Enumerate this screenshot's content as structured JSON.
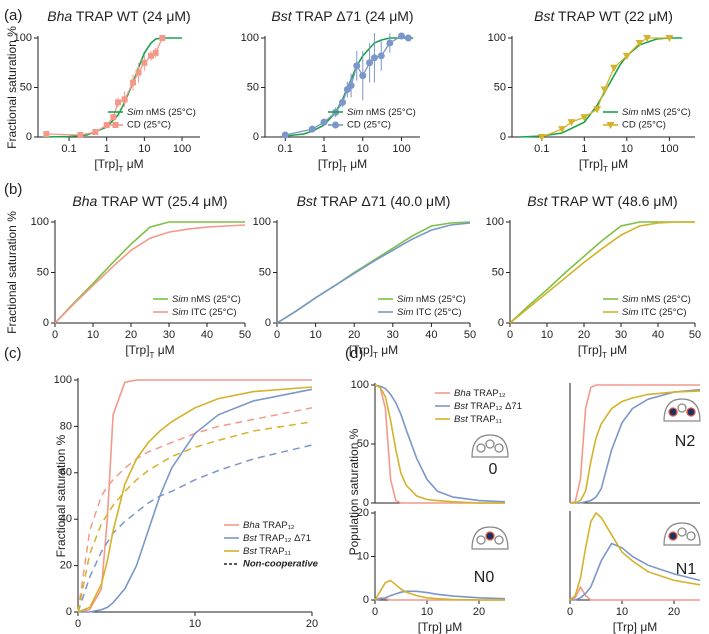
{
  "chart_data": [
    {
      "type": "line",
      "panel": "(a)",
      "title": "Bha TRAP WT (24 μM)",
      "title_style": "italic-first",
      "title_color": "#f4998a",
      "ylabel": "Fractional saturation %",
      "xlabel": [
        "[Trp]",
        "T",
        " μM"
      ],
      "xscale": "log",
      "xlim": [
        0.015,
        300
      ],
      "xticks": [
        0.1,
        1,
        10,
        100
      ],
      "ylim": [
        0,
        100
      ],
      "yticks": [
        0,
        50,
        100
      ],
      "legend": "lower right",
      "series": [
        {
          "name": "Sim nMS (25°C)",
          "name_style": "italic-first",
          "color": "#1aa34a",
          "x": [
            0.02,
            0.1,
            0.3,
            1,
            2,
            3,
            5,
            7,
            10,
            15,
            20,
            30,
            50,
            100
          ],
          "values": [
            0,
            0.5,
            2,
            10,
            22,
            35,
            55,
            70,
            85,
            95,
            99,
            100,
            100,
            100
          ]
        },
        {
          "name": "CD (25°C)",
          "name_style": "plain",
          "color": "#f4998a",
          "marker": "square",
          "x": [
            0.025,
            0.2,
            0.5,
            1,
            1.5,
            2,
            3,
            5,
            7,
            10,
            15,
            20,
            30
          ],
          "values": [
            3,
            2,
            5,
            12,
            20,
            35,
            38,
            55,
            65,
            75,
            82,
            85,
            100
          ],
          "errors": [
            1,
            1,
            2,
            2,
            3,
            5,
            8,
            8,
            10,
            8,
            5,
            5,
            2
          ]
        }
      ]
    },
    {
      "type": "line",
      "title": "Bst TRAP Δ71 (24 μM)",
      "title_style": "italic-first",
      "title_color": "#7b96c9",
      "xlabel": [
        "[Trp]",
        "T",
        " μM"
      ],
      "xscale": "log",
      "xlim": [
        0.03,
        300
      ],
      "xticks": [
        0.1,
        1,
        10,
        100
      ],
      "ylim": [
        0,
        100
      ],
      "yticks": [
        0,
        50,
        100
      ],
      "legend": "lower right",
      "series": [
        {
          "name": "Sim nMS (25°C)",
          "name_style": "italic-first",
          "color": "#1aa34a",
          "x": [
            0.1,
            0.3,
            0.5,
            1,
            2,
            3,
            5,
            7,
            10,
            20,
            30,
            50,
            100,
            200
          ],
          "values": [
            1,
            3,
            6,
            12,
            25,
            38,
            58,
            72,
            82,
            95,
            98,
            100,
            100,
            100
          ]
        },
        {
          "name": "CD (25°C)",
          "name_style": "plain",
          "color": "#7b96c9",
          "marker": "circle",
          "x": [
            0.1,
            0.5,
            1,
            2,
            3,
            4,
            5,
            7,
            10,
            15,
            20,
            30,
            50,
            100,
            150
          ],
          "values": [
            2,
            8,
            15,
            25,
            35,
            48,
            52,
            72,
            62,
            75,
            80,
            82,
            95,
            102,
            100
          ],
          "errors": [
            1,
            3,
            3,
            5,
            5,
            8,
            12,
            15,
            25,
            20,
            25,
            15,
            10,
            3,
            2
          ]
        }
      ]
    },
    {
      "type": "line",
      "title": "Bst TRAP WT (22 μM)",
      "title_style": "italic-first",
      "title_color": "#d4b22a",
      "xlabel": [
        "[Trp]",
        "T",
        " μM"
      ],
      "xscale": "log",
      "xlim": [
        0.02,
        400
      ],
      "xticks": [
        0.1,
        1,
        10,
        100
      ],
      "ylim": [
        0,
        100
      ],
      "yticks": [
        0,
        50,
        100
      ],
      "legend": "lower right",
      "series": [
        {
          "name": "Sim nMS (25°C)",
          "name_style": "italic-first",
          "color": "#1aa34a",
          "x": [
            0.03,
            0.1,
            0.3,
            1,
            2,
            3,
            5,
            7,
            10,
            20,
            50,
            100,
            200
          ],
          "values": [
            0,
            1,
            4,
            15,
            32,
            45,
            62,
            73,
            82,
            93,
            99,
            100,
            100
          ]
        },
        {
          "name": "CD (25°C)",
          "name_style": "plain",
          "color": "#d4b22a",
          "marker": "triangle",
          "x": [
            0.1,
            0.3,
            0.5,
            1,
            2,
            3,
            5,
            10,
            20,
            30,
            100
          ],
          "values": [
            0,
            8,
            15,
            20,
            28,
            48,
            70,
            82,
            95,
            100,
            100
          ]
        }
      ]
    },
    {
      "type": "line",
      "panel": "(b)",
      "title": "Bha TRAP WT (25.4 μM)",
      "title_style": "italic-first",
      "title_color": "#f4998a",
      "ylabel": "Fractional saturation %",
      "xlabel": [
        "[Trp]",
        "T",
        " μM"
      ],
      "xlim": [
        0,
        50
      ],
      "xticks": [
        0,
        10,
        20,
        30,
        40,
        50
      ],
      "ylim": [
        0,
        100
      ],
      "yticks": [
        0,
        50,
        100
      ],
      "legend": "lower right",
      "x": [
        0,
        5,
        10,
        15,
        20,
        25,
        30,
        35,
        40,
        45,
        50
      ],
      "series": [
        {
          "name": "Sim nMS (25°C)",
          "name_style": "italic-first",
          "color": "#7ac143",
          "values": [
            0,
            20,
            39,
            59,
            78,
            95,
            100,
            100,
            100,
            100,
            100
          ]
        },
        {
          "name": "Sim ITC (25°C)",
          "name_style": "italic-first",
          "color": "#f4998a",
          "values": [
            0,
            19,
            37,
            55,
            72,
            84,
            90,
            93,
            95,
            96,
            97
          ]
        }
      ]
    },
    {
      "type": "line",
      "title": "Bst TRAP Δ71 (40.0 μM)",
      "title_style": "italic-first",
      "title_color": "#7b96c9",
      "xlabel": [
        "[Trp]",
        "T",
        " μM"
      ],
      "xlim": [
        0,
        50
      ],
      "xticks": [
        0,
        10,
        20,
        30,
        40,
        50
      ],
      "ylim": [
        0,
        100
      ],
      "yticks": [
        0,
        50,
        100
      ],
      "legend": "lower right",
      "x": [
        0,
        5,
        10,
        15,
        20,
        25,
        30,
        35,
        40,
        45,
        50
      ],
      "series": [
        {
          "name": "Sim nMS (25°C)",
          "name_style": "italic-first",
          "color": "#7ac143",
          "values": [
            0,
            12,
            25,
            37,
            50,
            62,
            74,
            86,
            96,
            99,
            100
          ]
        },
        {
          "name": "Sim ITC (25°C)",
          "name_style": "italic-first",
          "color": "#7b96c9",
          "values": [
            0,
            12,
            25,
            37,
            49,
            61,
            72,
            83,
            92,
            97,
            99
          ]
        }
      ]
    },
    {
      "type": "line",
      "title": "Bst TRAP WT (48.6 μM)",
      "title_style": "italic-first",
      "title_color": "#d4b22a",
      "xlabel": [
        "[Trp]",
        "T",
        " μM"
      ],
      "xlim": [
        0,
        50
      ],
      "xticks": [
        0,
        10,
        20,
        30,
        40,
        50
      ],
      "ylim": [
        0,
        100
      ],
      "yticks": [
        0,
        50,
        100
      ],
      "legend": "lower right",
      "x": [
        0,
        5,
        10,
        15,
        20,
        25,
        30,
        35,
        40,
        45,
        50
      ],
      "series": [
        {
          "name": "Sim nMS (25°C)",
          "name_style": "italic-first",
          "color": "#7ac143",
          "values": [
            0,
            17,
            33,
            50,
            66,
            82,
            96,
            100,
            100,
            100,
            100
          ]
        },
        {
          "name": "Sim ITC (25°C)",
          "name_style": "italic-first",
          "color": "#d4b22a",
          "values": [
            0,
            15,
            30,
            45,
            60,
            74,
            87,
            96,
            99,
            100,
            100
          ]
        }
      ]
    },
    {
      "type": "line",
      "panel": "(c)",
      "ylabel": "Fractional saturation %",
      "xlabel": "[Trp] μM",
      "xlim": [
        0,
        20
      ],
      "xticks": [
        0,
        10,
        20
      ],
      "ylim": [
        0,
        100
      ],
      "yticks": [
        0,
        20,
        40,
        60,
        80,
        100
      ],
      "legend": "lower right",
      "noncoop_label": "Non-cooperative",
      "x": [
        0,
        1,
        2,
        2.5,
        3,
        4,
        5,
        6,
        7,
        8,
        10,
        12,
        15,
        20
      ],
      "series": [
        {
          "name": "Bha TRAP₁₂",
          "name_style": "italic-first",
          "color": "#f4998a",
          "values": [
            0,
            1,
            10,
            40,
            85,
            99,
            100,
            100,
            100,
            100,
            100,
            100,
            100,
            100
          ],
          "values_noncoop": [
            0,
            35,
            50,
            54,
            57,
            62,
            66,
            69,
            71,
            73,
            77,
            80,
            83,
            88
          ]
        },
        {
          "name": "Bst TRAP₁₂ Δ71",
          "name_style": "italic-first",
          "color": "#7b96c9",
          "values": [
            0,
            0,
            1,
            2,
            4,
            10,
            20,
            35,
            50,
            62,
            77,
            85,
            91,
            96
          ],
          "values_noncoop": [
            0,
            15,
            26,
            30,
            34,
            39,
            43,
            47,
            50,
            52,
            57,
            61,
            66,
            72
          ]
        },
        {
          "name": "Bst TRAP₁₁",
          "name_style": "italic-first",
          "color": "#d4b22a",
          "values": [
            0,
            2,
            12,
            22,
            35,
            55,
            66,
            73,
            78,
            82,
            88,
            92,
            95,
            97
          ],
          "values_noncoop": [
            0,
            25,
            38,
            42,
            46,
            52,
            57,
            61,
            64,
            67,
            71,
            74,
            78,
            82
          ]
        }
      ]
    },
    {
      "type": "line",
      "panel": "(d)",
      "ylabel": "Population saturation %",
      "annotation": "0",
      "xlim": [
        0,
        25
      ],
      "ylim": [
        0,
        100
      ],
      "yticks": [
        0,
        50,
        100
      ],
      "legend": "upper right",
      "x": [
        0,
        1,
        2,
        3,
        4,
        5,
        6,
        8,
        10,
        12,
        15,
        20,
        25
      ],
      "series": [
        {
          "name": "Bha TRAP₁₂",
          "name_style": "italic-first",
          "color": "#f4998a",
          "values": [
            100,
            98,
            80,
            20,
            2,
            0,
            0,
            0,
            0,
            0,
            0,
            0,
            0
          ]
        },
        {
          "name": "Bst TRAP₁₂ Δ71",
          "name_style": "italic-first",
          "color": "#7b96c9",
          "values": [
            100,
            99,
            97,
            92,
            85,
            75,
            62,
            38,
            20,
            10,
            5,
            2,
            1
          ]
        },
        {
          "name": "Bst TRAP₁₁",
          "name_style": "italic-first",
          "color": "#d4b22a",
          "values": [
            100,
            98,
            90,
            70,
            45,
            25,
            15,
            6,
            3,
            2,
            1,
            0,
            0
          ]
        }
      ]
    },
    {
      "type": "line",
      "annotation": "N2",
      "xlim": [
        0,
        25
      ],
      "ylim": [
        0,
        100
      ],
      "x": [
        0,
        1,
        2,
        3,
        4,
        5,
        6,
        8,
        10,
        12,
        15,
        20,
        25
      ],
      "series": [
        {
          "color": "#f4998a",
          "values": [
            0,
            1,
            20,
            80,
            98,
            100,
            100,
            100,
            100,
            100,
            100,
            100,
            100
          ]
        },
        {
          "color": "#7b96c9",
          "values": [
            0,
            0,
            0,
            1,
            2,
            5,
            12,
            45,
            68,
            80,
            88,
            94,
            96
          ]
        },
        {
          "color": "#d4b22a",
          "values": [
            0,
            0,
            2,
            10,
            35,
            55,
            67,
            80,
            86,
            89,
            92,
            94,
            95
          ]
        }
      ]
    },
    {
      "type": "line",
      "annotation": "N0",
      "xlabel": "[Trp] μM",
      "xlim": [
        0,
        25
      ],
      "xticks": [
        0,
        10,
        20
      ],
      "ylim": [
        0,
        20
      ],
      "yticks": [
        0,
        10,
        20
      ],
      "x": [
        0,
        1,
        2,
        3,
        4,
        5,
        6,
        8,
        10,
        12,
        15,
        20,
        25
      ],
      "series": [
        {
          "color": "#f4998a",
          "values": [
            0,
            0.5,
            0.3,
            0,
            0,
            0,
            0,
            0,
            0,
            0,
            0,
            0,
            0
          ]
        },
        {
          "color": "#7b96c9",
          "values": [
            0,
            0.2,
            0.5,
            1,
            1.4,
            1.8,
            2,
            2,
            1.7,
            1.3,
            0.9,
            0.5,
            0.3
          ]
        },
        {
          "color": "#d4b22a",
          "values": [
            0,
            2,
            4,
            4.5,
            3.5,
            2.5,
            1.8,
            1,
            0.5,
            0.3,
            0.1,
            0,
            0
          ]
        }
      ]
    },
    {
      "type": "line",
      "annotation": "N1",
      "xlabel": "[Trp] μM",
      "xlim": [
        0,
        25
      ],
      "xticks": [
        0,
        10,
        20
      ],
      "ylim": [
        0,
        20
      ],
      "x": [
        0,
        1,
        2,
        3,
        4,
        5,
        6,
        8,
        10,
        12,
        15,
        20,
        25
      ],
      "series": [
        {
          "color": "#f4998a",
          "values": [
            0,
            0.5,
            3,
            1,
            0,
            0,
            0,
            0,
            0,
            0,
            0,
            0,
            0
          ]
        },
        {
          "color": "#7b96c9",
          "values": [
            0,
            0,
            0.5,
            1.5,
            3,
            6,
            9,
            13,
            12,
            10,
            8,
            6,
            4.5
          ]
        },
        {
          "color": "#d4b22a",
          "values": [
            0,
            1,
            5,
            12,
            18,
            20,
            19,
            15,
            11,
            9,
            6.5,
            4.5,
            3.5
          ]
        }
      ]
    }
  ]
}
